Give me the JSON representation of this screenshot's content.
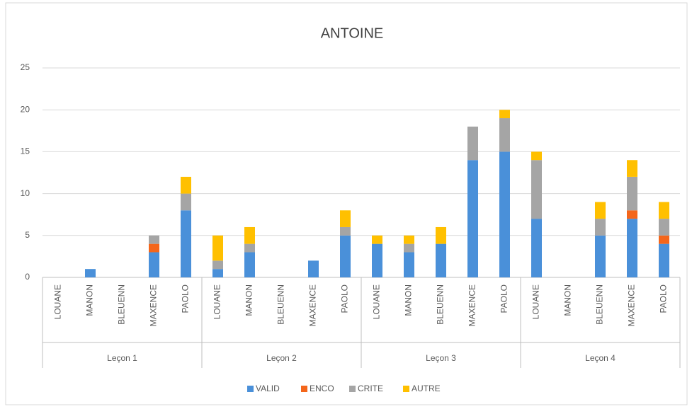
{
  "chart_data": {
    "type": "stacked_bar",
    "title": "ANTOINE",
    "groups": [
      "Leçon 1",
      "Leçon 2",
      "Leçon 3",
      "Leçon 4"
    ],
    "categories": [
      "LOUANE",
      "MANON",
      "BLEUENN",
      "MAXENCE",
      "PAOLO",
      "LOUANE",
      "MANON",
      "BLEUENN",
      "MAXENCE",
      "PAOLO",
      "LOUANE",
      "MANON",
      "BLEUENN",
      "MAXENCE",
      "PAOLO",
      "LOUANE",
      "MANON",
      "BLEUENN",
      "MAXENCE",
      "PAOLO"
    ],
    "series": [
      {
        "name": "VALID",
        "color": "#4a90d9",
        "values": [
          0,
          1,
          0,
          3,
          8,
          1,
          3,
          0,
          2,
          5,
          4,
          3,
          4,
          14,
          15,
          7,
          0,
          5,
          7,
          4
        ]
      },
      {
        "name": "ENCO",
        "color": "#f4661b",
        "values": [
          0,
          0,
          0,
          1,
          0,
          0,
          0,
          0,
          0,
          0,
          0,
          0,
          0,
          0,
          0,
          0,
          0,
          0,
          1,
          1
        ]
      },
      {
        "name": "CRITE",
        "color": "#a5a5a5",
        "values": [
          0,
          0,
          0,
          1,
          2,
          1,
          1,
          0,
          0,
          1,
          0,
          1,
          0,
          4,
          4,
          7,
          0,
          2,
          4,
          2
        ]
      },
      {
        "name": "AUTRE",
        "color": "#ffc000",
        "values": [
          0,
          0,
          0,
          0,
          2,
          3,
          2,
          0,
          0,
          2,
          1,
          1,
          2,
          0,
          1,
          1,
          0,
          2,
          2,
          2
        ]
      }
    ],
    "ylim": [
      0,
      25
    ],
    "yticks": [
      0,
      5,
      10,
      15,
      20,
      25
    ],
    "grid": true,
    "legend": "bottom"
  }
}
